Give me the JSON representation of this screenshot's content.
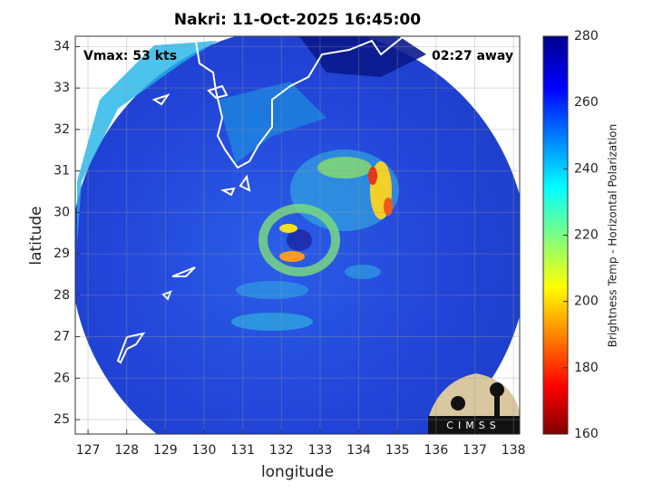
{
  "chart_data": {
    "type": "map",
    "title": "Nakri: 11-Oct-2025 16:45:00",
    "xlabel": "longitude",
    "ylabel": "latitude",
    "annotations": [
      "Vmax: 53 kts",
      "02:27 away"
    ],
    "logo": "CIMSS",
    "xlim": [
      126.67,
      138.16
    ],
    "xticks": [
      127,
      128,
      129,
      130,
      131,
      132,
      133,
      134,
      135,
      136,
      137,
      138
    ],
    "ylim": [
      24.65,
      34.25
    ],
    "yticks": [
      25,
      26,
      27,
      28,
      29,
      30,
      31,
      32,
      33,
      34
    ],
    "grid": true,
    "colorbar": {
      "label": "Brightness Temp - Horizontal Polarization",
      "lim": [
        160,
        280
      ],
      "ticks": [
        160,
        180,
        200,
        220,
        240,
        260,
        280
      ]
    }
  }
}
